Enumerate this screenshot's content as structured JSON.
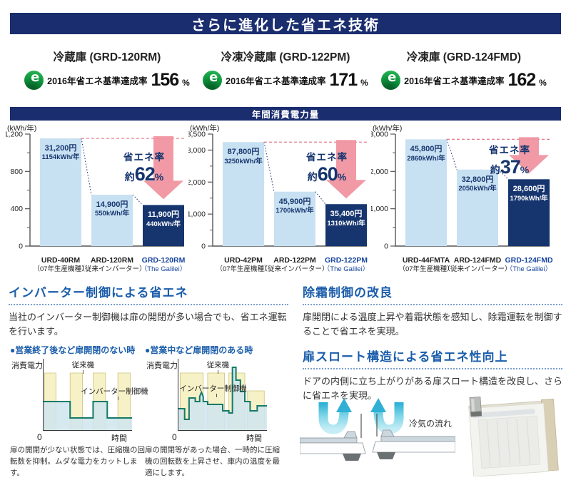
{
  "header": {
    "title": "さらに進化した省エネ技術"
  },
  "products": [
    {
      "name": "冷蔵庫 (GRD-120RM)",
      "eco_label": "2016年省エネ基準達成率",
      "eco_value": "156",
      "eco_unit": "%"
    },
    {
      "name": "冷凍冷蔵庫 (GRD-122PM)",
      "eco_label": "2016年省エネ基準達成率",
      "eco_value": "171",
      "eco_unit": "%"
    },
    {
      "name": "冷凍庫 (GRD-124FMD)",
      "eco_label": "2016年省エネ基準達成率",
      "eco_value": "162",
      "eco_unit": "%"
    }
  ],
  "power_section": {
    "title": "年間消費電力量"
  },
  "chart_data": [
    {
      "type": "bar",
      "unit": "(kWh/年)",
      "ylim": [
        0,
        1200
      ],
      "minor_step": 200,
      "yticks": [
        {
          "v": 1200,
          "label": "1,200"
        },
        {
          "v": 800,
          "label": "800"
        },
        {
          "v": 400,
          "label": "400"
        },
        {
          "v": 0,
          "label": "0"
        }
      ],
      "categories": [
        {
          "line1": "URD-40RM",
          "line2": "（07年生産機種）"
        },
        {
          "line1": "ARD-120RM",
          "line2": "（従来インバーター）"
        },
        {
          "line1": "GRD-120RM",
          "line2": "（The Galilei）"
        }
      ],
      "values": [
        1154,
        550,
        440
      ],
      "bar_labels": [
        {
          "price": "31,200円",
          "kwh": "1154kWh/年"
        },
        {
          "price": "14,900円",
          "kwh": "550kWh/年"
        },
        {
          "price": "11,900円",
          "kwh": "440kWh/年"
        }
      ],
      "saving": {
        "label": "省エネ率",
        "approx": "約",
        "value": "62",
        "unit": "%"
      },
      "text_top": 25
    },
    {
      "type": "bar",
      "unit": "(kWh/年)",
      "ylim": [
        0,
        3500
      ],
      "minor_step": 500,
      "yticks": [
        {
          "v": 3500,
          "label": "3,500"
        },
        {
          "v": 3000,
          "label": "3,000"
        },
        {
          "v": 2000,
          "label": "2,000"
        },
        {
          "v": 1000,
          "label": "1,000"
        },
        {
          "v": 0,
          "label": "0"
        }
      ],
      "categories": [
        {
          "line1": "URD-42PM",
          "line2": "（07年生産機種）"
        },
        {
          "line1": "ARD-122PM",
          "line2": "（従来インバーター）"
        },
        {
          "line1": "GRD-122PM",
          "line2": "（The Galilei）"
        }
      ],
      "values": [
        3250,
        1700,
        1310
      ],
      "bar_labels": [
        {
          "price": "87,800円",
          "kwh": "3250kWh/年"
        },
        {
          "price": "45,900円",
          "kwh": "1700kWh/年"
        },
        {
          "price": "35,400円",
          "kwh": "1310kWh/年"
        }
      ],
      "saving": {
        "label": "省エネ率",
        "approx": "約",
        "value": "60",
        "unit": "%"
      },
      "text_top": 25
    },
    {
      "type": "bar",
      "unit": "(kWh/年)",
      "ylim": [
        0,
        3000
      ],
      "minor_step": 500,
      "yticks": [
        {
          "v": 3000,
          "label": "3,000"
        },
        {
          "v": 2000,
          "label": "2,000"
        },
        {
          "v": 1000,
          "label": "1,000"
        },
        {
          "v": 0,
          "label": "0"
        }
      ],
      "categories": [
        {
          "line1": "URD-44FMTA",
          "line2": "（07年生産機種）"
        },
        {
          "line1": "ARD-124FMD",
          "line2": "（従来インバーター）"
        },
        {
          "line1": "GRD-124FMD",
          "line2": "（The Galilei）"
        }
      ],
      "values": [
        2860,
        2050,
        1790
      ],
      "bar_labels": [
        {
          "price": "45,800円",
          "kwh": "2860kWh/年"
        },
        {
          "price": "32,800円",
          "kwh": "2050kWh/年"
        },
        {
          "price": "28,600円",
          "kwh": "1790kWh/年"
        }
      ],
      "saving": {
        "label": "省エネ率",
        "approx": "約",
        "value": "37",
        "unit": "%"
      },
      "text_top": 15
    },
    {
      "type": "line",
      "title": "●営業終了後など扉開閉のない時",
      "ylabel": "消費電力",
      "xlabel": "時間",
      "origin": "0",
      "series": [
        {
          "name": "従来機"
        },
        {
          "name": "インバーター制御機"
        }
      ],
      "conv_bars": [
        [
          1,
          14,
          80
        ],
        [
          30,
          44,
          80
        ],
        [
          56,
          70,
          80
        ],
        [
          84,
          98,
          80
        ]
      ],
      "inv_points": [
        [
          0,
          40
        ],
        [
          30,
          40
        ],
        [
          30,
          17
        ],
        [
          56,
          17
        ],
        [
          56,
          40
        ],
        [
          72,
          40
        ],
        [
          72,
          17
        ],
        [
          100,
          17
        ]
      ],
      "caption": "扉の開閉が少ない状態では、圧縮機の回転数を抑制。ムダな電力をカットします。"
    },
    {
      "type": "line",
      "title": "●営業中など扉開閉のある時",
      "ylabel": "消費電力",
      "xlabel": "時間",
      "origin": "0",
      "series": [
        {
          "name": "従来機"
        },
        {
          "name": "インバーター制御機"
        }
      ],
      "conv_bars": [
        [
          2,
          28,
          80
        ],
        [
          33,
          52,
          80
        ],
        [
          57,
          75,
          80
        ],
        [
          78,
          97,
          55
        ]
      ],
      "inv_points": [
        [
          0,
          30
        ],
        [
          7,
          30
        ],
        [
          7,
          15
        ],
        [
          12,
          15
        ],
        [
          12,
          45
        ],
        [
          19,
          45
        ],
        [
          19,
          40
        ],
        [
          24,
          40
        ],
        [
          24,
          47
        ],
        [
          26,
          53
        ],
        [
          28,
          47
        ],
        [
          28,
          40
        ],
        [
          33,
          40
        ],
        [
          33,
          36
        ],
        [
          50,
          36
        ],
        [
          50,
          27
        ],
        [
          57,
          27
        ],
        [
          57,
          24
        ],
        [
          61,
          24
        ],
        [
          61,
          88
        ],
        [
          65,
          88
        ],
        [
          65,
          70
        ],
        [
          70,
          70
        ],
        [
          70,
          54
        ],
        [
          75,
          54
        ],
        [
          75,
          40
        ],
        [
          81,
          40
        ],
        [
          81,
          27
        ],
        [
          89,
          27
        ],
        [
          89,
          34
        ],
        [
          100,
          34
        ]
      ],
      "caption": "扉の開閉等があった場合、一時的に圧縮機の回転数を上昇させ、庫内の温度を最適にします。"
    }
  ],
  "sections": {
    "inverter": {
      "heading": "インバーター制御による省エネ",
      "body": "当社のインバーター制御機は扉の開閉が多い場合でも、省エネ運転を行います。"
    },
    "defrost": {
      "heading": "除霜制御の改良",
      "body": "扉開閉による温度上昇や着霜状態を感知し、除霜運転を制御することで省エネを実現。"
    },
    "throat": {
      "heading": "扉スロート構造による省エネ性向上",
      "body": "ドアの内側に立ち上がりがある扉スロート構造を改良し、さらに省エネを実現。",
      "flow_label": "冷気の流れ"
    }
  },
  "colors": {
    "navy": "#1a2d6e",
    "light_bar": "#c8e1f2",
    "navy_bar": "#16356f",
    "pink": "#f0929e",
    "dashed_red": "#e4818e",
    "heading_blue": "#1a5dab",
    "category_navy": "#17459e",
    "pale_yellow": "#f6f1c6",
    "yellow_border": "#cdc27f",
    "pale_blue": "#cfe5ef",
    "step_green": "#157a68",
    "eco_green": "#0f9a3f",
    "cyan_dark": "#25aed4",
    "cyan_light": "#c6edf5"
  }
}
